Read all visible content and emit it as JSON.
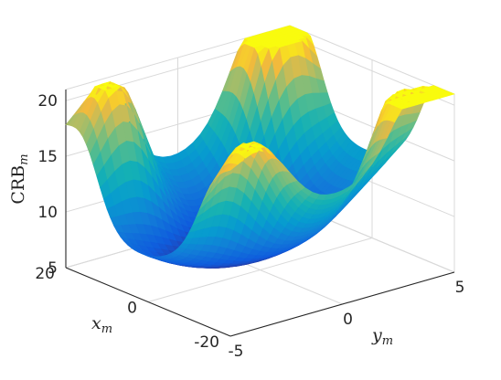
{
  "chart_data": {
    "type": "surface",
    "title": "",
    "xlabel": "x",
    "xlabel_sub": "m",
    "ylabel": "y",
    "ylabel_sub": "m",
    "zlabel": "CRB",
    "zlabel_sub": "m",
    "xlim": [
      -20,
      20
    ],
    "ylim": [
      -5,
      5
    ],
    "zlim": [
      5,
      21
    ],
    "x_ticks": [
      "-20",
      "0",
      "20"
    ],
    "y_ticks": [
      "-5",
      "0",
      "5"
    ],
    "z_ticks": [
      "5",
      "10",
      "15",
      "20"
    ],
    "grid": true,
    "box": true,
    "colormap": "parula",
    "peaks": [
      {
        "x": 16,
        "y": -3.5,
        "z": 20.5
      },
      {
        "x": 16,
        "y": 3.5,
        "z": 21.5
      },
      {
        "x": -16,
        "y": -3.5,
        "z": 17.5
      },
      {
        "x": -16,
        "y": 3.5,
        "z": 18.0
      }
    ],
    "minimum": {
      "x": 2,
      "y": -1,
      "z": 6.2
    }
  }
}
